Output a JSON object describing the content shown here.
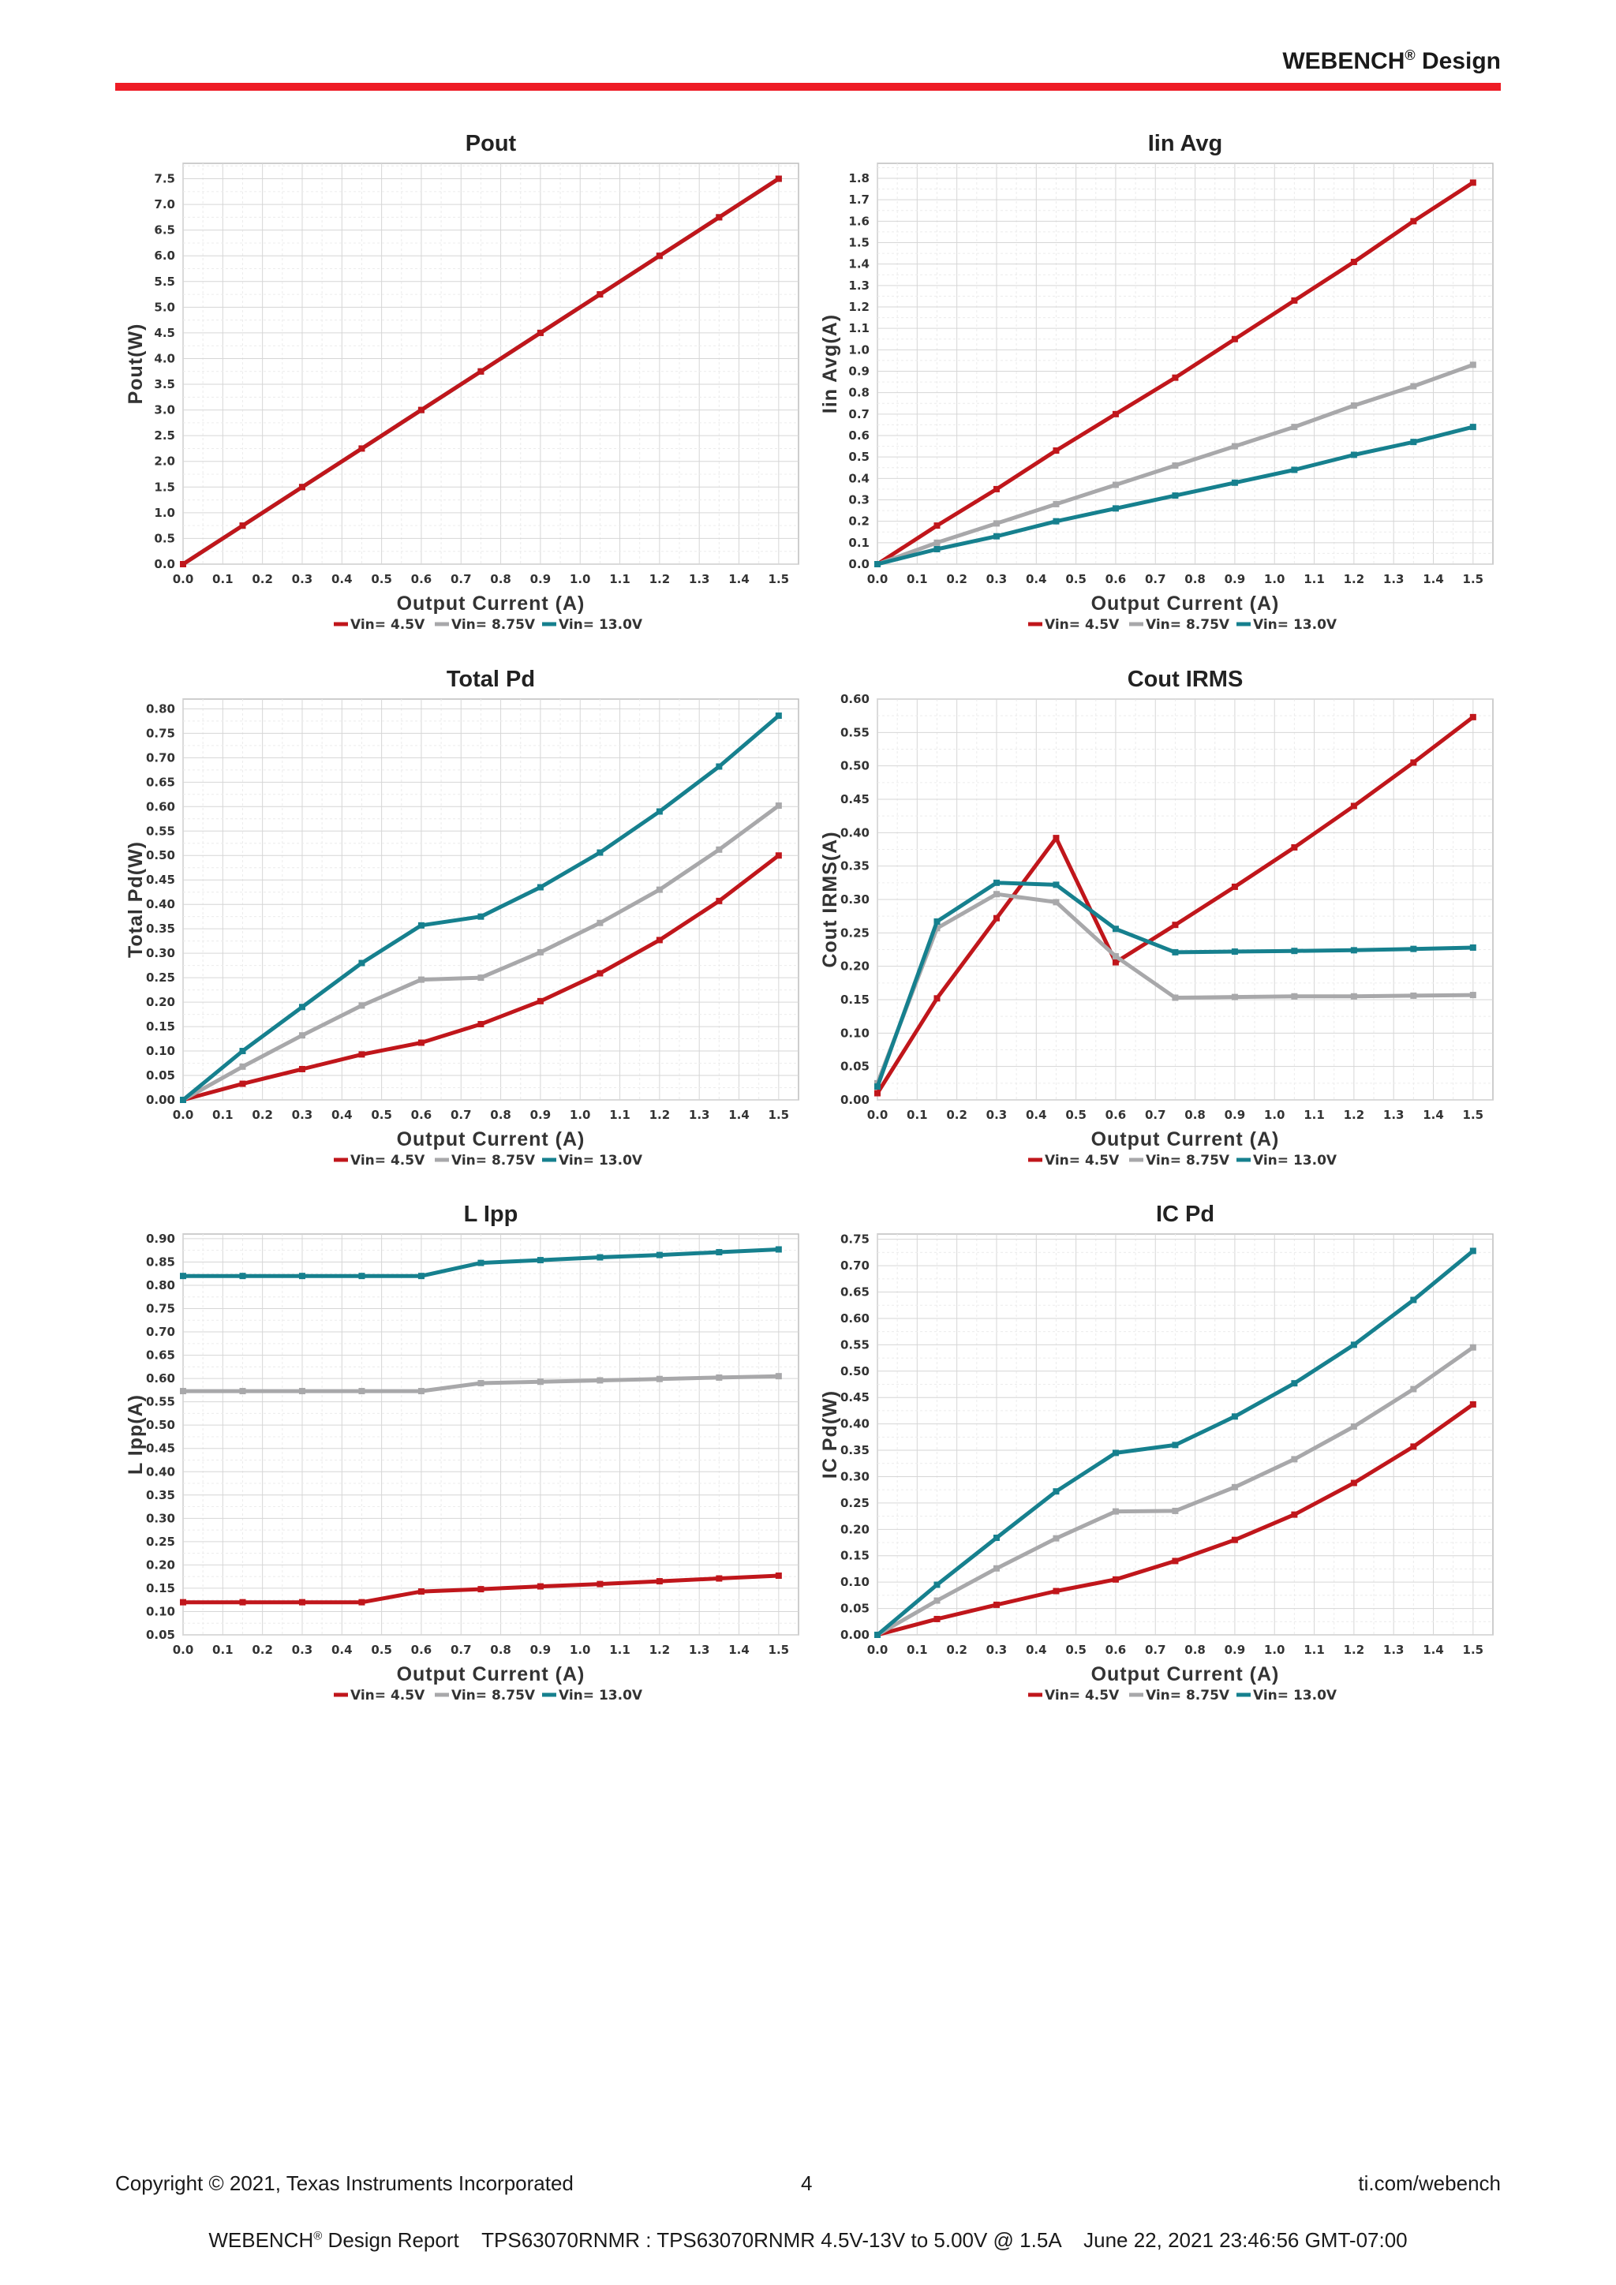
{
  "header": {
    "brand": "WEBENCH",
    "reg": "®",
    "suffix": "Design"
  },
  "colors": {
    "rule": "#ee1c25",
    "series": [
      "#c0161b",
      "#a8a8aa",
      "#16808e"
    ]
  },
  "legend_labels": [
    "Vin= 4.5V",
    "Vin= 8.75V",
    "Vin= 13.0V"
  ],
  "chart_data": [
    {
      "type": "line",
      "title": "Pout",
      "xlabel": "Output Current (A)",
      "ylabel": "Pout(W)",
      "xlim": [
        0,
        1.55
      ],
      "ylim": [
        0,
        7.8
      ],
      "ytick_step": 0.5,
      "ytick_decimals": 1,
      "xtick_step": 0.1,
      "legend": "bottom-center",
      "grid": true,
      "series": [
        {
          "name": "Vin= 13.0V",
          "x": [
            0,
            0.15,
            0.3,
            0.45,
            0.6,
            0.75,
            0.9,
            1.05,
            1.2,
            1.35,
            1.5
          ],
          "y": [
            0,
            0.75,
            1.5,
            2.25,
            3.0,
            3.75,
            4.5,
            5.25,
            6.0,
            6.75,
            7.5
          ]
        },
        {
          "name": "Vin= 8.75V",
          "x": [
            0,
            0.15,
            0.3,
            0.45,
            0.6,
            0.75,
            0.9,
            1.05,
            1.2,
            1.35,
            1.5
          ],
          "y": [
            0,
            0.75,
            1.5,
            2.25,
            3.0,
            3.75,
            4.5,
            5.25,
            6.0,
            6.75,
            7.5
          ]
        },
        {
          "name": "Vin= 4.5V",
          "x": [
            0,
            0.15,
            0.3,
            0.45,
            0.6,
            0.75,
            0.9,
            1.05,
            1.2,
            1.35,
            1.5
          ],
          "y": [
            0,
            0.75,
            1.5,
            2.25,
            3.0,
            3.75,
            4.5,
            5.25,
            6.0,
            6.75,
            7.5
          ]
        }
      ]
    },
    {
      "type": "line",
      "title": "Iin Avg",
      "xlabel": "Output Current (A)",
      "ylabel": "Iin Avg(A)",
      "xlim": [
        0,
        1.55
      ],
      "ylim": [
        0,
        1.87
      ],
      "ytick_step": 0.1,
      "ytick_decimals": 1,
      "xtick_step": 0.1,
      "legend": "bottom-center",
      "grid": true,
      "series": [
        {
          "name": "Vin= 4.5V",
          "x": [
            0,
            0.15,
            0.3,
            0.45,
            0.6,
            0.75,
            0.9,
            1.05,
            1.2,
            1.35,
            1.5
          ],
          "y": [
            0,
            0.18,
            0.35,
            0.53,
            0.7,
            0.87,
            1.05,
            1.23,
            1.41,
            1.6,
            1.78
          ]
        },
        {
          "name": "Vin= 8.75V",
          "x": [
            0,
            0.15,
            0.3,
            0.45,
            0.6,
            0.75,
            0.9,
            1.05,
            1.2,
            1.35,
            1.5
          ],
          "y": [
            0,
            0.1,
            0.19,
            0.28,
            0.37,
            0.46,
            0.55,
            0.64,
            0.74,
            0.83,
            0.93
          ]
        },
        {
          "name": "Vin= 13.0V",
          "x": [
            0,
            0.15,
            0.3,
            0.45,
            0.6,
            0.75,
            0.9,
            1.05,
            1.2,
            1.35,
            1.5
          ],
          "y": [
            0,
            0.07,
            0.13,
            0.2,
            0.26,
            0.32,
            0.38,
            0.44,
            0.51,
            0.57,
            0.64
          ]
        }
      ]
    },
    {
      "type": "line",
      "title": "Total Pd",
      "xlabel": "Output Current (A)",
      "ylabel": "Total Pd(W)",
      "xlim": [
        0,
        1.55
      ],
      "ylim": [
        0,
        0.82
      ],
      "ytick_step": 0.05,
      "ytick_decimals": 2,
      "xtick_step": 0.1,
      "legend": "bottom-center",
      "grid": true,
      "series": [
        {
          "name": "Vin= 4.5V",
          "x": [
            0,
            0.15,
            0.3,
            0.45,
            0.6,
            0.75,
            0.9,
            1.05,
            1.2,
            1.35,
            1.5
          ],
          "y": [
            0,
            0.033,
            0.063,
            0.093,
            0.117,
            0.155,
            0.202,
            0.259,
            0.327,
            0.407,
            0.5
          ]
        },
        {
          "name": "Vin= 8.75V",
          "x": [
            0,
            0.15,
            0.3,
            0.45,
            0.6,
            0.75,
            0.9,
            1.05,
            1.2,
            1.35,
            1.5
          ],
          "y": [
            0,
            0.068,
            0.132,
            0.193,
            0.246,
            0.25,
            0.302,
            0.362,
            0.43,
            0.512,
            0.602
          ]
        },
        {
          "name": "Vin= 13.0V",
          "x": [
            0,
            0.15,
            0.3,
            0.45,
            0.6,
            0.75,
            0.9,
            1.05,
            1.2,
            1.35,
            1.5
          ],
          "y": [
            0,
            0.1,
            0.19,
            0.28,
            0.357,
            0.375,
            0.435,
            0.506,
            0.59,
            0.682,
            0.786
          ]
        }
      ]
    },
    {
      "type": "line",
      "title": "Cout IRMS",
      "xlabel": "Output Current (A)",
      "ylabel": "Cout IRMS(A)",
      "xlim": [
        0,
        1.55
      ],
      "ylim": [
        0,
        0.6
      ],
      "ytick_step": 0.05,
      "ytick_decimals": 2,
      "xtick_step": 0.1,
      "legend": "bottom-center",
      "grid": true,
      "series": [
        {
          "name": "Vin= 4.5V",
          "x": [
            0,
            0.15,
            0.3,
            0.45,
            0.6,
            0.75,
            0.9,
            1.05,
            1.2,
            1.35,
            1.5
          ],
          "y": [
            0.01,
            0.152,
            0.272,
            0.392,
            0.206,
            0.262,
            0.319,
            0.378,
            0.44,
            0.505,
            0.573
          ]
        },
        {
          "name": "Vin= 8.75V",
          "x": [
            0,
            0.15,
            0.3,
            0.45,
            0.6,
            0.75,
            0.9,
            1.05,
            1.2,
            1.35,
            1.5
          ],
          "y": [
            0.025,
            0.257,
            0.308,
            0.296,
            0.215,
            0.153,
            0.154,
            0.155,
            0.155,
            0.156,
            0.157
          ]
        },
        {
          "name": "Vin= 13.0V",
          "x": [
            0,
            0.15,
            0.3,
            0.45,
            0.6,
            0.75,
            0.9,
            1.05,
            1.2,
            1.35,
            1.5
          ],
          "y": [
            0.02,
            0.267,
            0.325,
            0.322,
            0.256,
            0.221,
            0.222,
            0.223,
            0.224,
            0.226,
            0.228
          ]
        }
      ]
    },
    {
      "type": "line",
      "title": "L Ipp",
      "xlabel": "Output Current (A)",
      "ylabel": "L Ipp(A)",
      "xlim": [
        0,
        1.55
      ],
      "ylim": [
        0.05,
        0.91
      ],
      "ytick_step": 0.05,
      "ytick_decimals": 2,
      "xtick_step": 0.1,
      "legend": "bottom-center",
      "grid": true,
      "series": [
        {
          "name": "Vin= 4.5V",
          "x": [
            0,
            0.15,
            0.3,
            0.45,
            0.6,
            0.75,
            0.9,
            1.05,
            1.2,
            1.35,
            1.5
          ],
          "y": [
            0.12,
            0.12,
            0.12,
            0.12,
            0.143,
            0.148,
            0.154,
            0.159,
            0.165,
            0.171,
            0.177
          ]
        },
        {
          "name": "Vin= 8.75V",
          "x": [
            0,
            0.15,
            0.3,
            0.45,
            0.6,
            0.75,
            0.9,
            1.05,
            1.2,
            1.35,
            1.5
          ],
          "y": [
            0.573,
            0.573,
            0.573,
            0.573,
            0.573,
            0.59,
            0.593,
            0.596,
            0.599,
            0.602,
            0.605
          ]
        },
        {
          "name": "Vin= 13.0V",
          "x": [
            0,
            0.15,
            0.3,
            0.45,
            0.6,
            0.75,
            0.9,
            1.05,
            1.2,
            1.35,
            1.5
          ],
          "y": [
            0.82,
            0.82,
            0.82,
            0.82,
            0.82,
            0.848,
            0.854,
            0.86,
            0.865,
            0.871,
            0.877
          ]
        }
      ]
    },
    {
      "type": "line",
      "title": "IC Pd",
      "xlabel": "Output Current (A)",
      "ylabel": "IC Pd(W)",
      "xlim": [
        0,
        1.55
      ],
      "ylim": [
        0,
        0.76
      ],
      "ytick_step": 0.05,
      "ytick_decimals": 2,
      "xtick_step": 0.1,
      "legend": "bottom-center",
      "grid": true,
      "series": [
        {
          "name": "Vin= 4.5V",
          "x": [
            0,
            0.15,
            0.3,
            0.45,
            0.6,
            0.75,
            0.9,
            1.05,
            1.2,
            1.35,
            1.5
          ],
          "y": [
            0,
            0.03,
            0.057,
            0.083,
            0.105,
            0.14,
            0.18,
            0.228,
            0.288,
            0.357,
            0.437
          ]
        },
        {
          "name": "Vin= 8.75V",
          "x": [
            0,
            0.15,
            0.3,
            0.45,
            0.6,
            0.75,
            0.9,
            1.05,
            1.2,
            1.35,
            1.5
          ],
          "y": [
            0,
            0.065,
            0.126,
            0.183,
            0.234,
            0.235,
            0.28,
            0.333,
            0.395,
            0.466,
            0.545
          ]
        },
        {
          "name": "Vin= 13.0V",
          "x": [
            0,
            0.15,
            0.3,
            0.45,
            0.6,
            0.75,
            0.9,
            1.05,
            1.2,
            1.35,
            1.5
          ],
          "y": [
            0,
            0.095,
            0.184,
            0.272,
            0.345,
            0.36,
            0.414,
            0.477,
            0.55,
            0.635,
            0.728
          ]
        }
      ]
    }
  ],
  "footer": {
    "copyright": "Copyright © 2021, Texas Instruments Incorporated",
    "page": "4",
    "site": "ti.com/webench",
    "report_brand": "WEBENCH",
    "report_reg": "®",
    "report_text": " Design Report    TPS63070RNMR : TPS63070RNMR 4.5V-13V to 5.00V @ 1.5A    June 22, 2021 23:46:56 GMT-07:00"
  }
}
